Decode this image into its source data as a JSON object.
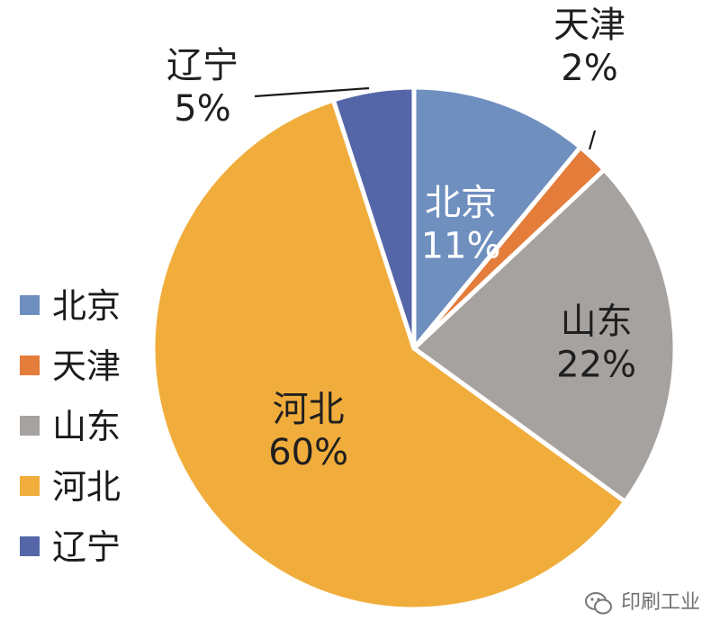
{
  "chart_data": {
    "type": "pie",
    "slices": [
      {
        "name": "北京",
        "value": 11,
        "label": "11%",
        "color": "#6f8fbf"
      },
      {
        "name": "天津",
        "value": 2,
        "label": "2%",
        "color": "#e47c3a"
      },
      {
        "name": "山东",
        "value": 22,
        "label": "22%",
        "color": "#a6a2a0"
      },
      {
        "name": "河北",
        "value": 60,
        "label": "60%",
        "color": "#f1ad3c"
      },
      {
        "name": "辽宁",
        "value": 5,
        "label": "5%",
        "color": "#5566a8"
      }
    ],
    "legend": [
      "北京",
      "天津",
      "山东",
      "河北",
      "辽宁"
    ],
    "legend_position": "left"
  },
  "watermark": {
    "text": "印刷工业",
    "icon": "wechat-icon"
  }
}
